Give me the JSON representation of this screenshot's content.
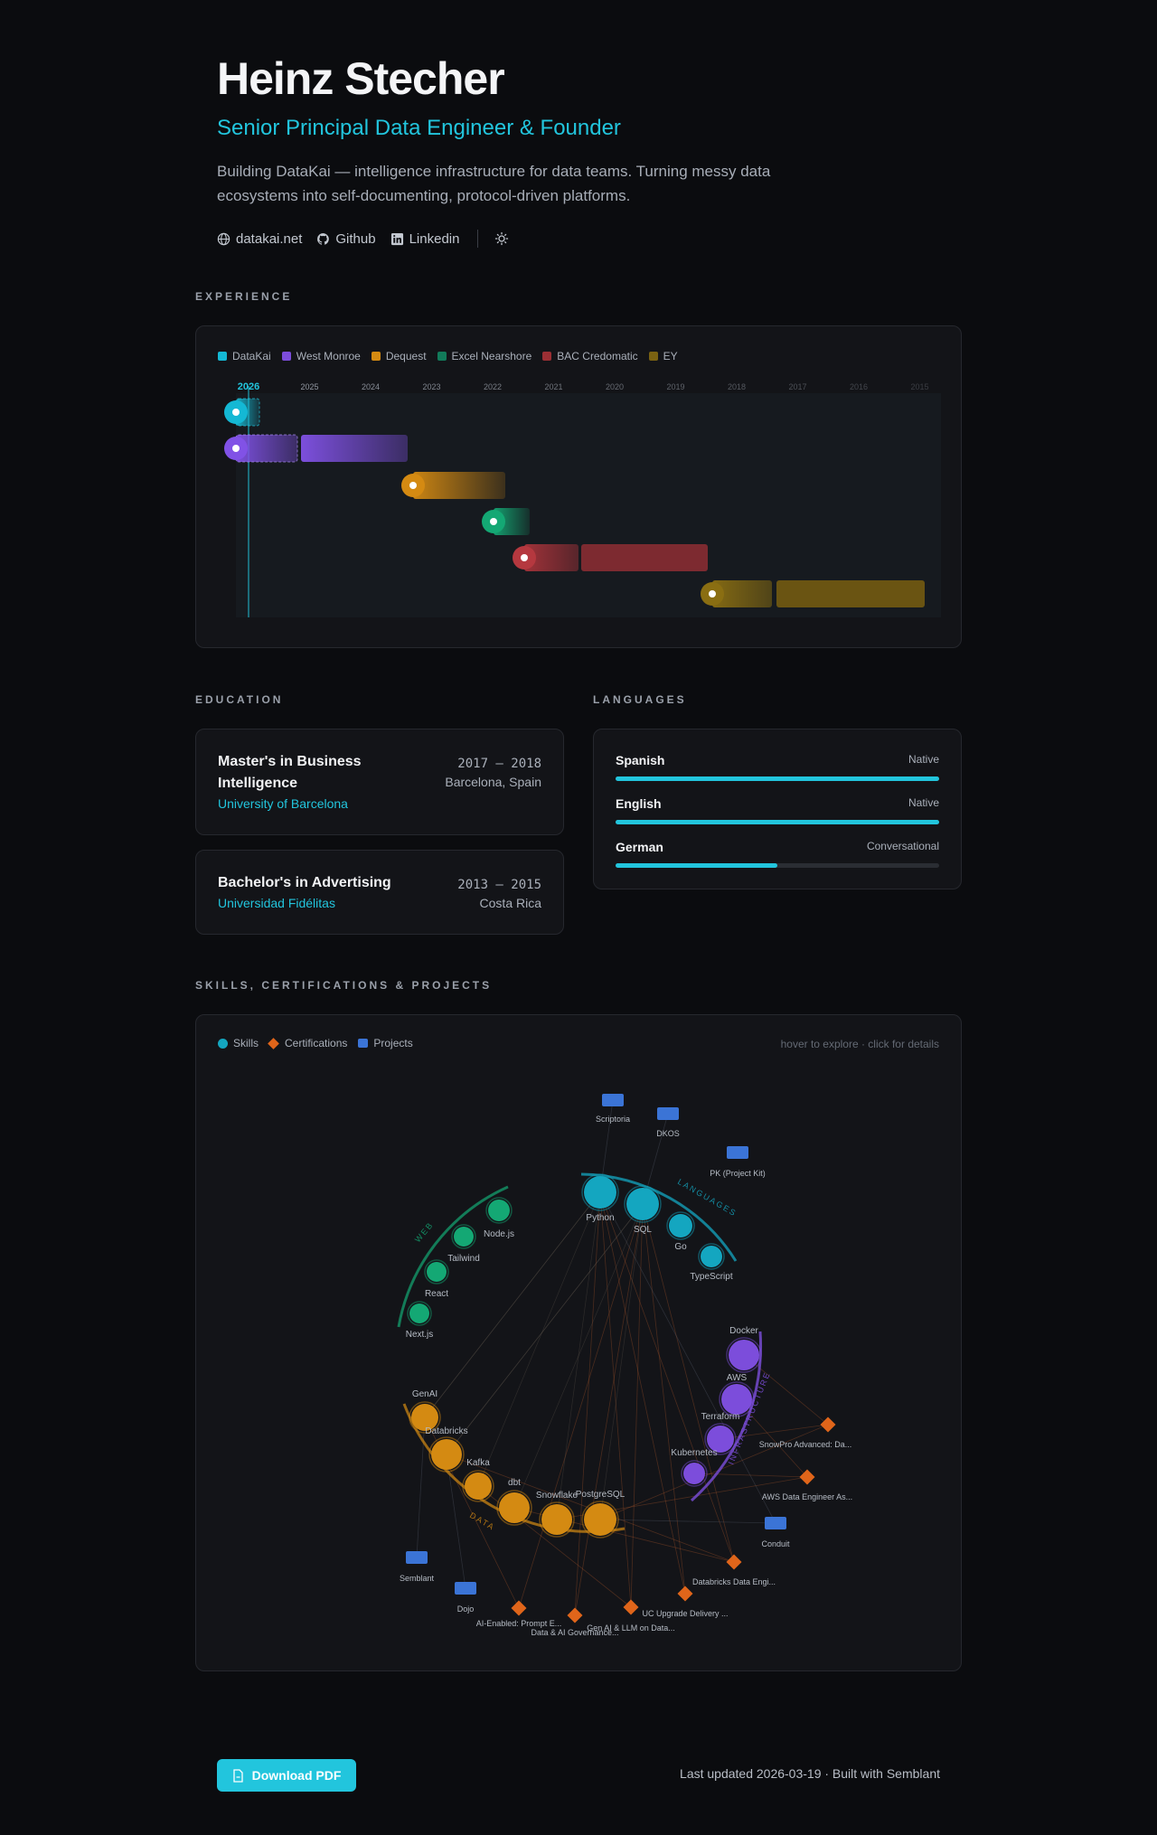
{
  "header": {
    "name": "Heinz Stecher",
    "role": "Senior Principal Data Engineer & Founder",
    "bio": "Building DataKai — intelligence infrastructure for data teams. Turning messy data ecosystems into self-documenting, protocol-driven platforms.",
    "links": [
      {
        "label": "datakai.net",
        "icon": "globe-icon"
      },
      {
        "label": "Github",
        "icon": "github-icon"
      },
      {
        "label": "Linkedin",
        "icon": "linkedin-icon"
      }
    ],
    "theme_toggle_icon": "sun-icon"
  },
  "experience": {
    "title": "EXPERIENCE",
    "legend": [
      {
        "name": "DataKai",
        "color": "#14b8d4"
      },
      {
        "name": "West Monroe",
        "color": "#7c4ddb"
      },
      {
        "name": "Dequest",
        "color": "#d48a12"
      },
      {
        "name": "Excel Nearshore",
        "color": "#127a5a"
      },
      {
        "name": "BAC Credomatic",
        "color": "#9a2f34"
      },
      {
        "name": "EY",
        "color": "#7a6212"
      }
    ],
    "years": [
      "2026",
      "2025",
      "2024",
      "2023",
      "2022",
      "2021",
      "2020",
      "2019",
      "2018",
      "2017",
      "2016",
      "2015"
    ],
    "current_year": "2026"
  },
  "education": {
    "title": "EDUCATION",
    "items": [
      {
        "degree": "Master's in Business Intelligence",
        "institution": "University of Barcelona",
        "dates": "2017 — 2018",
        "location": "Barcelona, Spain"
      },
      {
        "degree": "Bachelor's in Advertising",
        "institution": "Universidad Fidélitas",
        "dates": "2013 — 2015",
        "location": "Costa Rica"
      }
    ]
  },
  "languages": {
    "title": "LANGUAGES",
    "items": [
      {
        "name": "Spanish",
        "level": "Native",
        "proficiency": 1.0
      },
      {
        "name": "English",
        "level": "Native",
        "proficiency": 1.0
      },
      {
        "name": "German",
        "level": "Conversational",
        "proficiency": 0.5
      }
    ]
  },
  "skills": {
    "title": "SKILLS, CERTIFICATIONS & PROJECTS",
    "legend": [
      {
        "name": "Skills",
        "color": "#14a6c0",
        "shape": "circle"
      },
      {
        "name": "Certifications",
        "color": "#e0651a",
        "shape": "diamond"
      },
      {
        "name": "Projects",
        "color": "#3b74d6",
        "shape": "square"
      }
    ],
    "hint": "hover to explore · click for details",
    "groups": [
      "LANGUAGES",
      "WEB",
      "INFRASTRUCTURE",
      "DATA"
    ],
    "skill_nodes": [
      "Python",
      "SQL",
      "Go",
      "TypeScript",
      "Node.js",
      "Tailwind",
      "React",
      "Next.js",
      "Docker",
      "AWS",
      "Terraform",
      "Kubernetes",
      "GenAI",
      "Databricks",
      "Kafka",
      "dbt",
      "Snowflake",
      "PostgreSQL"
    ],
    "projects": [
      "Scriptoria",
      "DKOS",
      "PK (Project Kit)",
      "Conduit",
      "Semblant",
      "Dojo"
    ],
    "certifications": [
      "SnowPro Advanced: Da...",
      "AWS Data Engineer As...",
      "Databricks Data Engi...",
      "UC Upgrade Delivery ...",
      "Gen AI & LLM on Data...",
      "AI-Enabled: Prompt E...",
      "Data & AI Governance..."
    ]
  },
  "footer": {
    "download_label": "Download PDF",
    "updated_text": "Last updated 2026-03-19 · Built with Semblant"
  }
}
